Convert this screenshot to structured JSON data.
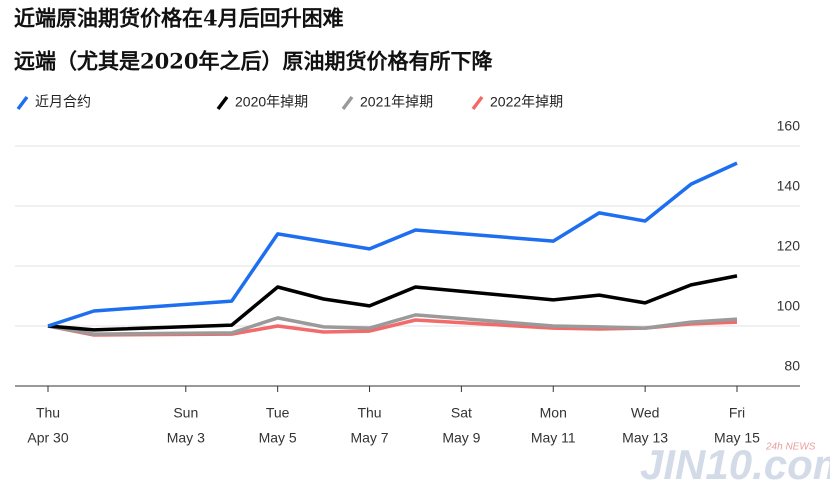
{
  "chart_data": {
    "type": "line",
    "title": "近端原油期货价格在4月后回升困难",
    "subtitle": "远端（尤其是2020年之后）原油期货价格有所下降",
    "x": [
      "Apr 30",
      "May 1",
      "May 4",
      "May 5",
      "May 6",
      "May 7",
      "May 8",
      "May 11",
      "May 12",
      "May 13",
      "May 14",
      "May 15"
    ],
    "series": [
      {
        "name": "近月合约",
        "color": "#1e6ff0",
        "values": [
          100,
          105,
          108.3,
          130.7,
          128.2,
          125.7,
          132,
          128.3,
          137.7,
          135,
          147.3,
          154.3
        ]
      },
      {
        "name": "2020年掉期",
        "color": "#000000",
        "values": [
          100,
          98.7,
          100.3,
          113,
          109,
          106.7,
          113,
          108.7,
          110.3,
          107.7,
          113.7,
          116.7
        ]
      },
      {
        "name": "2021年掉期",
        "color": "#9a9a9a",
        "values": [
          100,
          97.3,
          97.7,
          102.7,
          99.7,
          99.3,
          103.7,
          100,
          99.7,
          99.3,
          101.3,
          102.3
        ]
      },
      {
        "name": "2022年掉期",
        "color": "#f26b6b",
        "values": [
          100,
          97,
          97.3,
          100,
          98,
          98.3,
          102,
          99.3,
          99,
          99.3,
          100.7,
          101.3
        ]
      }
    ],
    "ylim": [
      80,
      160
    ],
    "yticks": [
      80,
      100,
      120,
      140,
      160
    ],
    "xticks": [
      {
        "value": "Apr 30",
        "weekday": "Thu",
        "label": "Apr 30"
      },
      {
        "value": "May 3",
        "weekday": "Sun",
        "label": "May 3"
      },
      {
        "value": "May 5",
        "weekday": "Tue",
        "label": "May 5"
      },
      {
        "value": "May 7",
        "weekday": "Thu",
        "label": "May 7"
      },
      {
        "value": "May 9",
        "weekday": "Sat",
        "label": "May 9"
      },
      {
        "value": "May 11",
        "weekday": "Mon",
        "label": "May 11"
      },
      {
        "value": "May 13",
        "weekday": "Wed",
        "label": "May 13"
      },
      {
        "value": "May 15",
        "weekday": "Fri",
        "label": "May 15"
      }
    ],
    "grid": true,
    "watermark": "JIN10.com",
    "watermark_tag": "24h NEWS"
  }
}
